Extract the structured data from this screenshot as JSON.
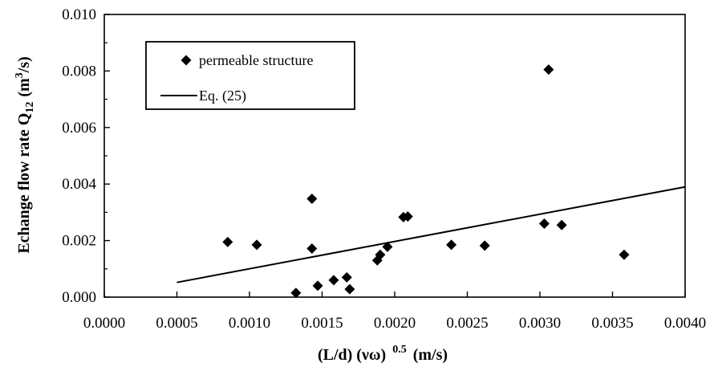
{
  "chart_data": {
    "type": "scatter",
    "title": "",
    "xlabel": {
      "main": "(L/d) (νω)",
      "exp": "0.5",
      "unit": "(m/s)"
    },
    "ylabel": {
      "main": "Echange flow rate Q",
      "sub": "12",
      "unit_pre": "(m",
      "unit_sup": "3",
      "unit_post": "/s)"
    },
    "xlim": [
      0.0,
      0.004
    ],
    "ylim": [
      0.0,
      0.01
    ],
    "x_ticks": [
      "0.0000",
      "0.0005",
      "0.0010",
      "0.0015",
      "0.0020",
      "0.0025",
      "0.0030",
      "0.0035",
      "0.0040"
    ],
    "y_ticks": [
      "0.000",
      "0.002",
      "0.004",
      "0.006",
      "0.008",
      "0.010"
    ],
    "grid": false,
    "legend_position": "top-left",
    "series": [
      {
        "name": "permeable structure",
        "kind": "scatter",
        "marker": "diamond",
        "color": "#000000",
        "points": [
          {
            "x": 0.00085,
            "y": 0.00195
          },
          {
            "x": 0.00105,
            "y": 0.00185
          },
          {
            "x": 0.00132,
            "y": 0.00015
          },
          {
            "x": 0.00143,
            "y": 0.00348
          },
          {
            "x": 0.00143,
            "y": 0.00172
          },
          {
            "x": 0.00147,
            "y": 0.0004
          },
          {
            "x": 0.00158,
            "y": 0.0006
          },
          {
            "x": 0.00167,
            "y": 0.0007
          },
          {
            "x": 0.00169,
            "y": 0.00028
          },
          {
            "x": 0.00188,
            "y": 0.0013
          },
          {
            "x": 0.0019,
            "y": 0.0015
          },
          {
            "x": 0.00195,
            "y": 0.00178
          },
          {
            "x": 0.00206,
            "y": 0.00283
          },
          {
            "x": 0.00209,
            "y": 0.00285
          },
          {
            "x": 0.00239,
            "y": 0.00185
          },
          {
            "x": 0.00262,
            "y": 0.00182
          },
          {
            "x": 0.00303,
            "y": 0.0026
          },
          {
            "x": 0.00306,
            "y": 0.00805
          },
          {
            "x": 0.00315,
            "y": 0.00255
          },
          {
            "x": 0.00358,
            "y": 0.0015
          }
        ]
      },
      {
        "name": "Eq. (25)",
        "kind": "line",
        "color": "#000000",
        "points": [
          {
            "x": 0.0005,
            "y": 0.00052
          },
          {
            "x": 0.004,
            "y": 0.0039
          }
        ]
      }
    ]
  }
}
